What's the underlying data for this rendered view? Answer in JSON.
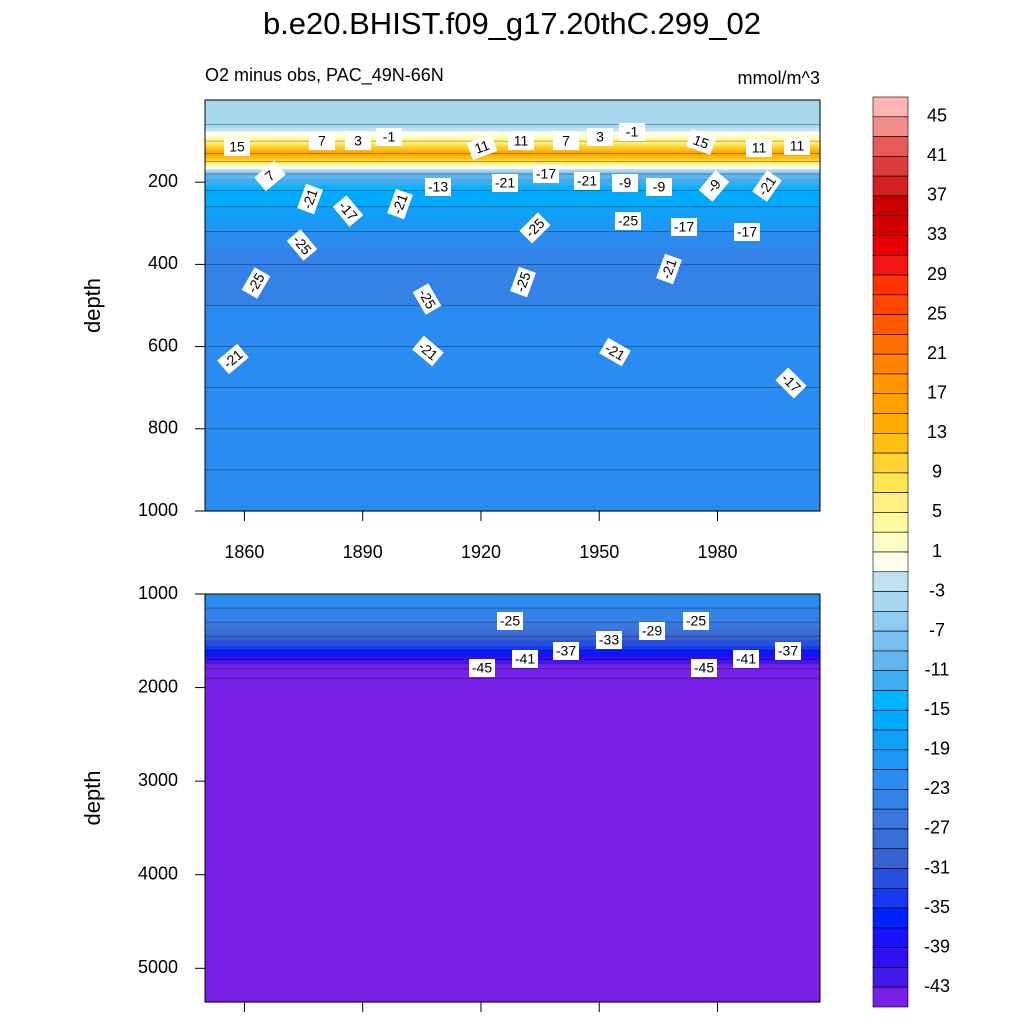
{
  "chart_data": {
    "type": "contour",
    "title": "b.e20.BHIST.f09_g17.20thC.299_02",
    "subtitle": "O2 minus obs, PAC_49N-66N",
    "units": "mmol/m^3",
    "colorbar": {
      "levels": [
        45,
        43,
        41,
        39,
        37,
        35,
        33,
        31,
        29,
        27,
        25,
        23,
        21,
        19,
        17,
        15,
        13,
        11,
        9,
        7,
        5,
        3,
        1,
        -1,
        -3,
        -5,
        -7,
        -9,
        -11,
        -13,
        -15,
        -17,
        -19,
        -21,
        -23,
        -25,
        -27,
        -29,
        -31,
        -33,
        -35,
        -37,
        -39,
        -41,
        -43
      ],
      "colors": [
        "#ffb4b4",
        "#f48c8c",
        "#e85a5a",
        "#dc3c3c",
        "#d22020",
        "#c80000",
        "#d20000",
        "#e60000",
        "#f51414",
        "#ff3200",
        "#ff4600",
        "#ff5a00",
        "#ff6e00",
        "#ff8200",
        "#ff9600",
        "#ffa000",
        "#ffaa00",
        "#ffbe14",
        "#ffd232",
        "#ffe650",
        "#fff080",
        "#fffaa0",
        "#ffffc8",
        "#fffff0",
        "#c0e0f4",
        "#a8d8f0",
        "#90ccf0",
        "#78c0f0",
        "#60b4f0",
        "#40acf0",
        "#00b4ff",
        "#00aaff",
        "#10a0f8",
        "#1e96f5",
        "#2a8cf0",
        "#3282e8",
        "#3a78e0",
        "#3a6ed8",
        "#3a62d0",
        "#2850e0",
        "#1838f0",
        "#0020ff",
        "#1810ff",
        "#3010f0",
        "#4018e8",
        "#7820e8"
      ]
    },
    "panels": [
      {
        "ylabel": "depth",
        "xlim": [
          1850,
          2006
        ],
        "xticks": [
          1860,
          1890,
          1920,
          1950,
          1980
        ],
        "show_xtick_labels": true,
        "ylim": [
          0,
          1000
        ],
        "yticks": [
          200,
          400,
          600,
          800,
          1000
        ],
        "profile": {
          "depth": [
            0,
            60,
            100,
            130,
            150,
            180,
            220,
            260,
            320,
            400,
            500,
            600,
            700,
            800,
            900,
            1000
          ],
          "values": [
            -3,
            -5,
            5,
            15,
            9,
            -9,
            -15,
            -17,
            -21,
            -25,
            -23,
            -22,
            -21,
            -21,
            -21,
            -21
          ]
        },
        "contour_labels": [
          15,
          7,
          3,
          -1,
          11,
          11,
          7,
          3,
          -1,
          15,
          11,
          11,
          7,
          -21,
          -17,
          -21,
          -13,
          -21,
          -17,
          -21,
          -9,
          -9,
          -9,
          -21,
          -25,
          -25,
          -25,
          -17,
          -17,
          -25,
          -25,
          -25,
          -21,
          -21,
          -21,
          -21,
          -17
        ]
      },
      {
        "ylabel": "depth",
        "xlim": [
          1850,
          2006
        ],
        "xticks": [
          1860,
          1890,
          1920,
          1950,
          1980
        ],
        "show_xtick_labels": false,
        "ylim": [
          1000,
          5360
        ],
        "yticks": [
          1000,
          2000,
          3000,
          4000,
          5000
        ],
        "profile": {
          "depth": [
            1000,
            1150,
            1300,
            1450,
            1600,
            1700,
            1800,
            1900,
            5360
          ],
          "values": [
            -21,
            -23,
            -25,
            -29,
            -35,
            -41,
            -45,
            -47,
            -47
          ]
        },
        "contour_labels": [
          -25,
          -25,
          -29,
          -33,
          -37,
          -37,
          -41,
          -41,
          -45,
          -45
        ]
      }
    ]
  }
}
